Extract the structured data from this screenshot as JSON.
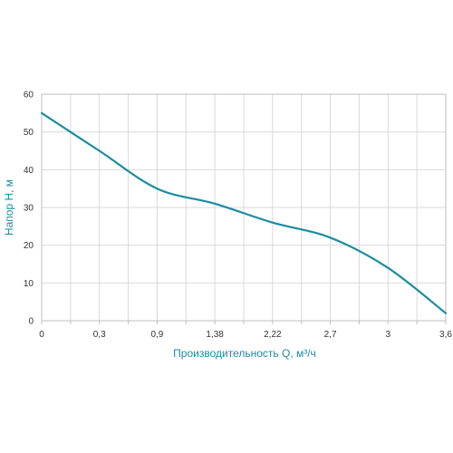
{
  "chart_data": {
    "type": "line",
    "xlabel": "Производительность Q, м³/ч",
    "ylabel": "Напор H, м",
    "x_tick_labels": [
      "0",
      "0,3",
      "0,9",
      "1,38",
      "2,22",
      "2,7",
      "3",
      "3,6"
    ],
    "y_tick_labels": [
      "0",
      "10",
      "20",
      "30",
      "40",
      "50",
      "60"
    ],
    "ylim": [
      0,
      60
    ],
    "grid": true,
    "legend": "none",
    "series": [
      {
        "color": "#1b8ca0",
        "points": [
          {
            "x": "0",
            "y": 55
          },
          {
            "x": "0,3",
            "y": 45
          },
          {
            "x": "0,9",
            "y": 35
          },
          {
            "x": "1,38",
            "y": 31
          },
          {
            "x": "2,22",
            "y": 26
          },
          {
            "x": "2,7",
            "y": 22
          },
          {
            "x": "3",
            "y": 14
          },
          {
            "x": "3,6",
            "y": 2
          }
        ]
      }
    ]
  }
}
